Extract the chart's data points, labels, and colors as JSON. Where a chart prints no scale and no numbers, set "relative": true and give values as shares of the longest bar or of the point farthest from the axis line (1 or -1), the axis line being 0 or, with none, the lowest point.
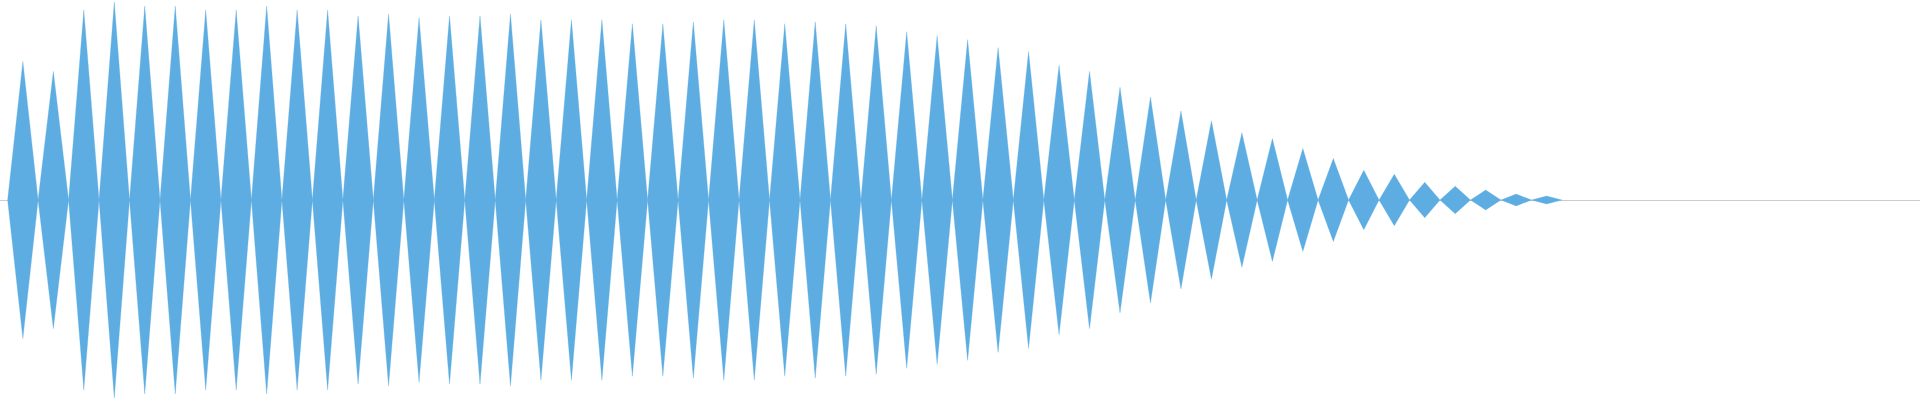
{
  "chart_data": {
    "type": "area",
    "relative": true,
    "grid": false,
    "categories": [
      null,
      null,
      null,
      null,
      null,
      null,
      null,
      null,
      null,
      null,
      null,
      null,
      null,
      null,
      null,
      null,
      null,
      null,
      null,
      null,
      null,
      null,
      null,
      null,
      null,
      null,
      null,
      null,
      null,
      null,
      null,
      null,
      null,
      null,
      null,
      null,
      null,
      null,
      null,
      null,
      null,
      null,
      null,
      null,
      null,
      null,
      null,
      null,
      null,
      null,
      null,
      null,
      null,
      null,
      null,
      null,
      null,
      null,
      null,
      null,
      null,
      null,
      null,
      null,
      null,
      null,
      null,
      null,
      null,
      null,
      null,
      null,
      null,
      null,
      null,
      null,
      null,
      null,
      null,
      null,
      null,
      null,
      null,
      null,
      null,
      null,
      null,
      null,
      null,
      null,
      null,
      null,
      null,
      null,
      null,
      null,
      null,
      null,
      null,
      null,
      null,
      null,
      null,
      null,
      null,
      null,
      null,
      null,
      null,
      null,
      null,
      null,
      null,
      null,
      null,
      null,
      null,
      null,
      null,
      null,
      null,
      null,
      null,
      null,
      null,
      null
    ],
    "series": [
      {
        "color": "#5dade2",
        "values": [
          0,
          0.7,
          0,
          0.65,
          0,
          0.96,
          0,
          1,
          0,
          0.98,
          0,
          0.98,
          0,
          0.96,
          0,
          0.96,
          0,
          0.98,
          0,
          0.96,
          0,
          0.96,
          0,
          0.93,
          0,
          0.94,
          0,
          0.92,
          0,
          0.93,
          0,
          0.93,
          0,
          0.94,
          0,
          0.91,
          0,
          0.91,
          0,
          0.91,
          0,
          0.89,
          0,
          0.89,
          0,
          0.9,
          0,
          0.91,
          0,
          0.91,
          0,
          0.89,
          0,
          0.9,
          0,
          0.89,
          0,
          0.88,
          0,
          0.85,
          0,
          0.83,
          0,
          0.81,
          0,
          0.77,
          0,
          0.75,
          0,
          0.68,
          0,
          0.65,
          0,
          0.57,
          0,
          0.52,
          0,
          0.45,
          0,
          0.4,
          0,
          0.34,
          0,
          0.31,
          0,
          0.26,
          0,
          0.21,
          0,
          0.15,
          0,
          0.13,
          0,
          0.09,
          0,
          0.07,
          0,
          0.05,
          0,
          0.03,
          0,
          0.02,
          0,
          null,
          null,
          null,
          null,
          null,
          null,
          null,
          null,
          null,
          null,
          null,
          null,
          null,
          null,
          null,
          null,
          null,
          null,
          null,
          null,
          null,
          null,
          null
        ]
      },
      {
        "color": "#5dade2",
        "values": [
          0,
          -0.7,
          0,
          -0.65,
          0,
          -0.96,
          0,
          -1,
          0,
          -0.98,
          0,
          -0.98,
          0,
          -0.96,
          0,
          -0.96,
          0,
          -0.98,
          0,
          -0.96,
          0,
          -0.96,
          0,
          -0.93,
          0,
          -0.94,
          0,
          -0.92,
          0,
          -0.93,
          0,
          -0.93,
          0,
          -0.94,
          0,
          -0.91,
          0,
          -0.91,
          0,
          -0.91,
          0,
          -0.89,
          0,
          -0.89,
          0,
          -0.9,
          0,
          -0.91,
          0,
          -0.91,
          0,
          -0.89,
          0,
          -0.9,
          0,
          -0.89,
          0,
          -0.88,
          0,
          -0.85,
          0,
          -0.83,
          0,
          -0.81,
          0,
          -0.77,
          0,
          -0.75,
          0,
          -0.68,
          0,
          -0.65,
          0,
          -0.57,
          0,
          -0.52,
          0,
          -0.45,
          0,
          -0.4,
          0,
          -0.34,
          0,
          -0.31,
          0,
          -0.26,
          0,
          -0.21,
          0,
          -0.15,
          0,
          -0.13,
          0,
          -0.09,
          0,
          -0.07,
          0,
          -0.05,
          0,
          -0.03,
          0,
          -0.02,
          0,
          null,
          null,
          null,
          null,
          null,
          null,
          null,
          null,
          null,
          null,
          null,
          null,
          null,
          null,
          null,
          null,
          null,
          null,
          null,
          null,
          null,
          null,
          null
        ]
      }
    ]
  }
}
